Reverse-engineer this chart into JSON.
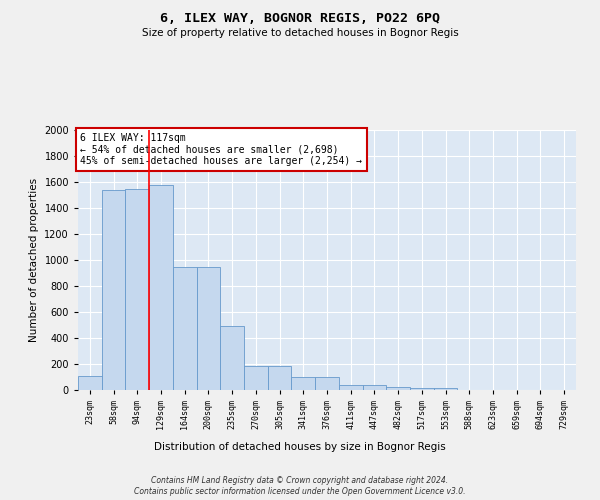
{
  "title": "6, ILEX WAY, BOGNOR REGIS, PO22 6PQ",
  "subtitle": "Size of property relative to detached houses in Bognor Regis",
  "xlabel": "Distribution of detached houses by size in Bognor Regis",
  "ylabel": "Number of detached properties",
  "bar_values": [
    110,
    1540,
    1550,
    1580,
    950,
    950,
    490,
    185,
    185,
    100,
    100,
    35,
    35,
    25,
    15,
    15,
    0,
    0,
    0,
    0,
    0
  ],
  "bin_labels": [
    "23sqm",
    "58sqm",
    "94sqm",
    "129sqm",
    "164sqm",
    "200sqm",
    "235sqm",
    "270sqm",
    "305sqm",
    "341sqm",
    "376sqm",
    "411sqm",
    "447sqm",
    "482sqm",
    "517sqm",
    "553sqm",
    "588sqm",
    "623sqm",
    "659sqm",
    "694sqm",
    "729sqm"
  ],
  "bar_color": "#c5d8ee",
  "bar_edge_color": "#6699cc",
  "background_color": "#dde8f4",
  "grid_color": "#ffffff",
  "annotation_box_color": "#ffffff",
  "annotation_border_color": "#cc0000",
  "annotation_text_line1": "6 ILEX WAY: 117sqm",
  "annotation_text_line2": "← 54% of detached houses are smaller (2,698)",
  "annotation_text_line3": "45% of semi-detached houses are larger (2,254) →",
  "red_line_x": 2.5,
  "ylim": [
    0,
    2000
  ],
  "yticks": [
    0,
    200,
    400,
    600,
    800,
    1000,
    1200,
    1400,
    1600,
    1800,
    2000
  ],
  "footer_line1": "Contains HM Land Registry data © Crown copyright and database right 2024.",
  "footer_line2": "Contains public sector information licensed under the Open Government Licence v3.0."
}
